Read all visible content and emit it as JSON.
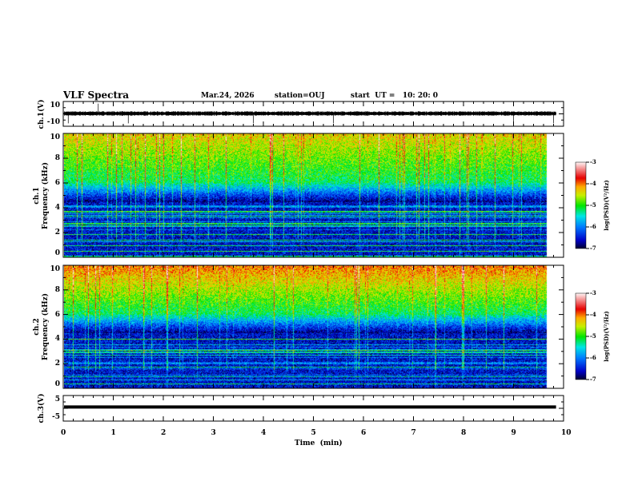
{
  "header": {
    "title": "VLF Spectra",
    "date": "Mar.24, 2026",
    "station": "station=OUJ",
    "start_ut": "start  UT =   10: 20: 0"
  },
  "chart_data": [
    {
      "type": "line",
      "name": "ch1 waveform",
      "ylabel": "ch.1(V)",
      "ylim": [
        -10,
        10
      ],
      "yticks": [
        "10",
        "-10"
      ],
      "xlim": [
        0,
        10
      ],
      "mean": 0.3,
      "amplitude": 1.5,
      "data_end_min": 9.85
    },
    {
      "type": "heatmap",
      "name": "ch1 spectrogram",
      "ylabel_lines": [
        "ch.1",
        "Frequency  (kHz)"
      ],
      "ylim": [
        0,
        10
      ],
      "yticks": [
        "0",
        "2",
        "4",
        "6",
        "8",
        "10"
      ],
      "xlim": [
        0,
        10
      ],
      "colorbar": {
        "label": "log(PSD)(V²/Hz)",
        "range": [
          -7,
          -3
        ],
        "ticks": [
          "-3",
          "-4",
          "-5",
          "-6",
          "-7"
        ]
      }
    },
    {
      "type": "heatmap",
      "name": "ch2 spectrogram",
      "ylabel_lines": [
        "ch.2",
        "Frequency  (kHz)"
      ],
      "ylim": [
        0,
        10
      ],
      "yticks": [
        "0",
        "2",
        "4",
        "6",
        "8",
        "10"
      ],
      "xlim": [
        0,
        10
      ],
      "colorbar": {
        "label": "log(PSD)(V²/Hz)",
        "range": [
          -7,
          -3
        ],
        "ticks": [
          "-3",
          "-4",
          "-5",
          "-6",
          "-7"
        ]
      }
    },
    {
      "type": "line",
      "name": "ch3 waveform",
      "ylabel": "ch.3(V)",
      "ylim": [
        -5,
        5
      ],
      "yticks": [
        "5",
        "-5"
      ],
      "xlim": [
        0,
        10
      ],
      "value": 0.5,
      "data_end_min": 9.85
    }
  ],
  "xaxis": {
    "label": "Time  (min)",
    "ticks": [
      "0",
      "1",
      "2",
      "3",
      "4",
      "5",
      "6",
      "7",
      "8",
      "9",
      "10"
    ]
  }
}
